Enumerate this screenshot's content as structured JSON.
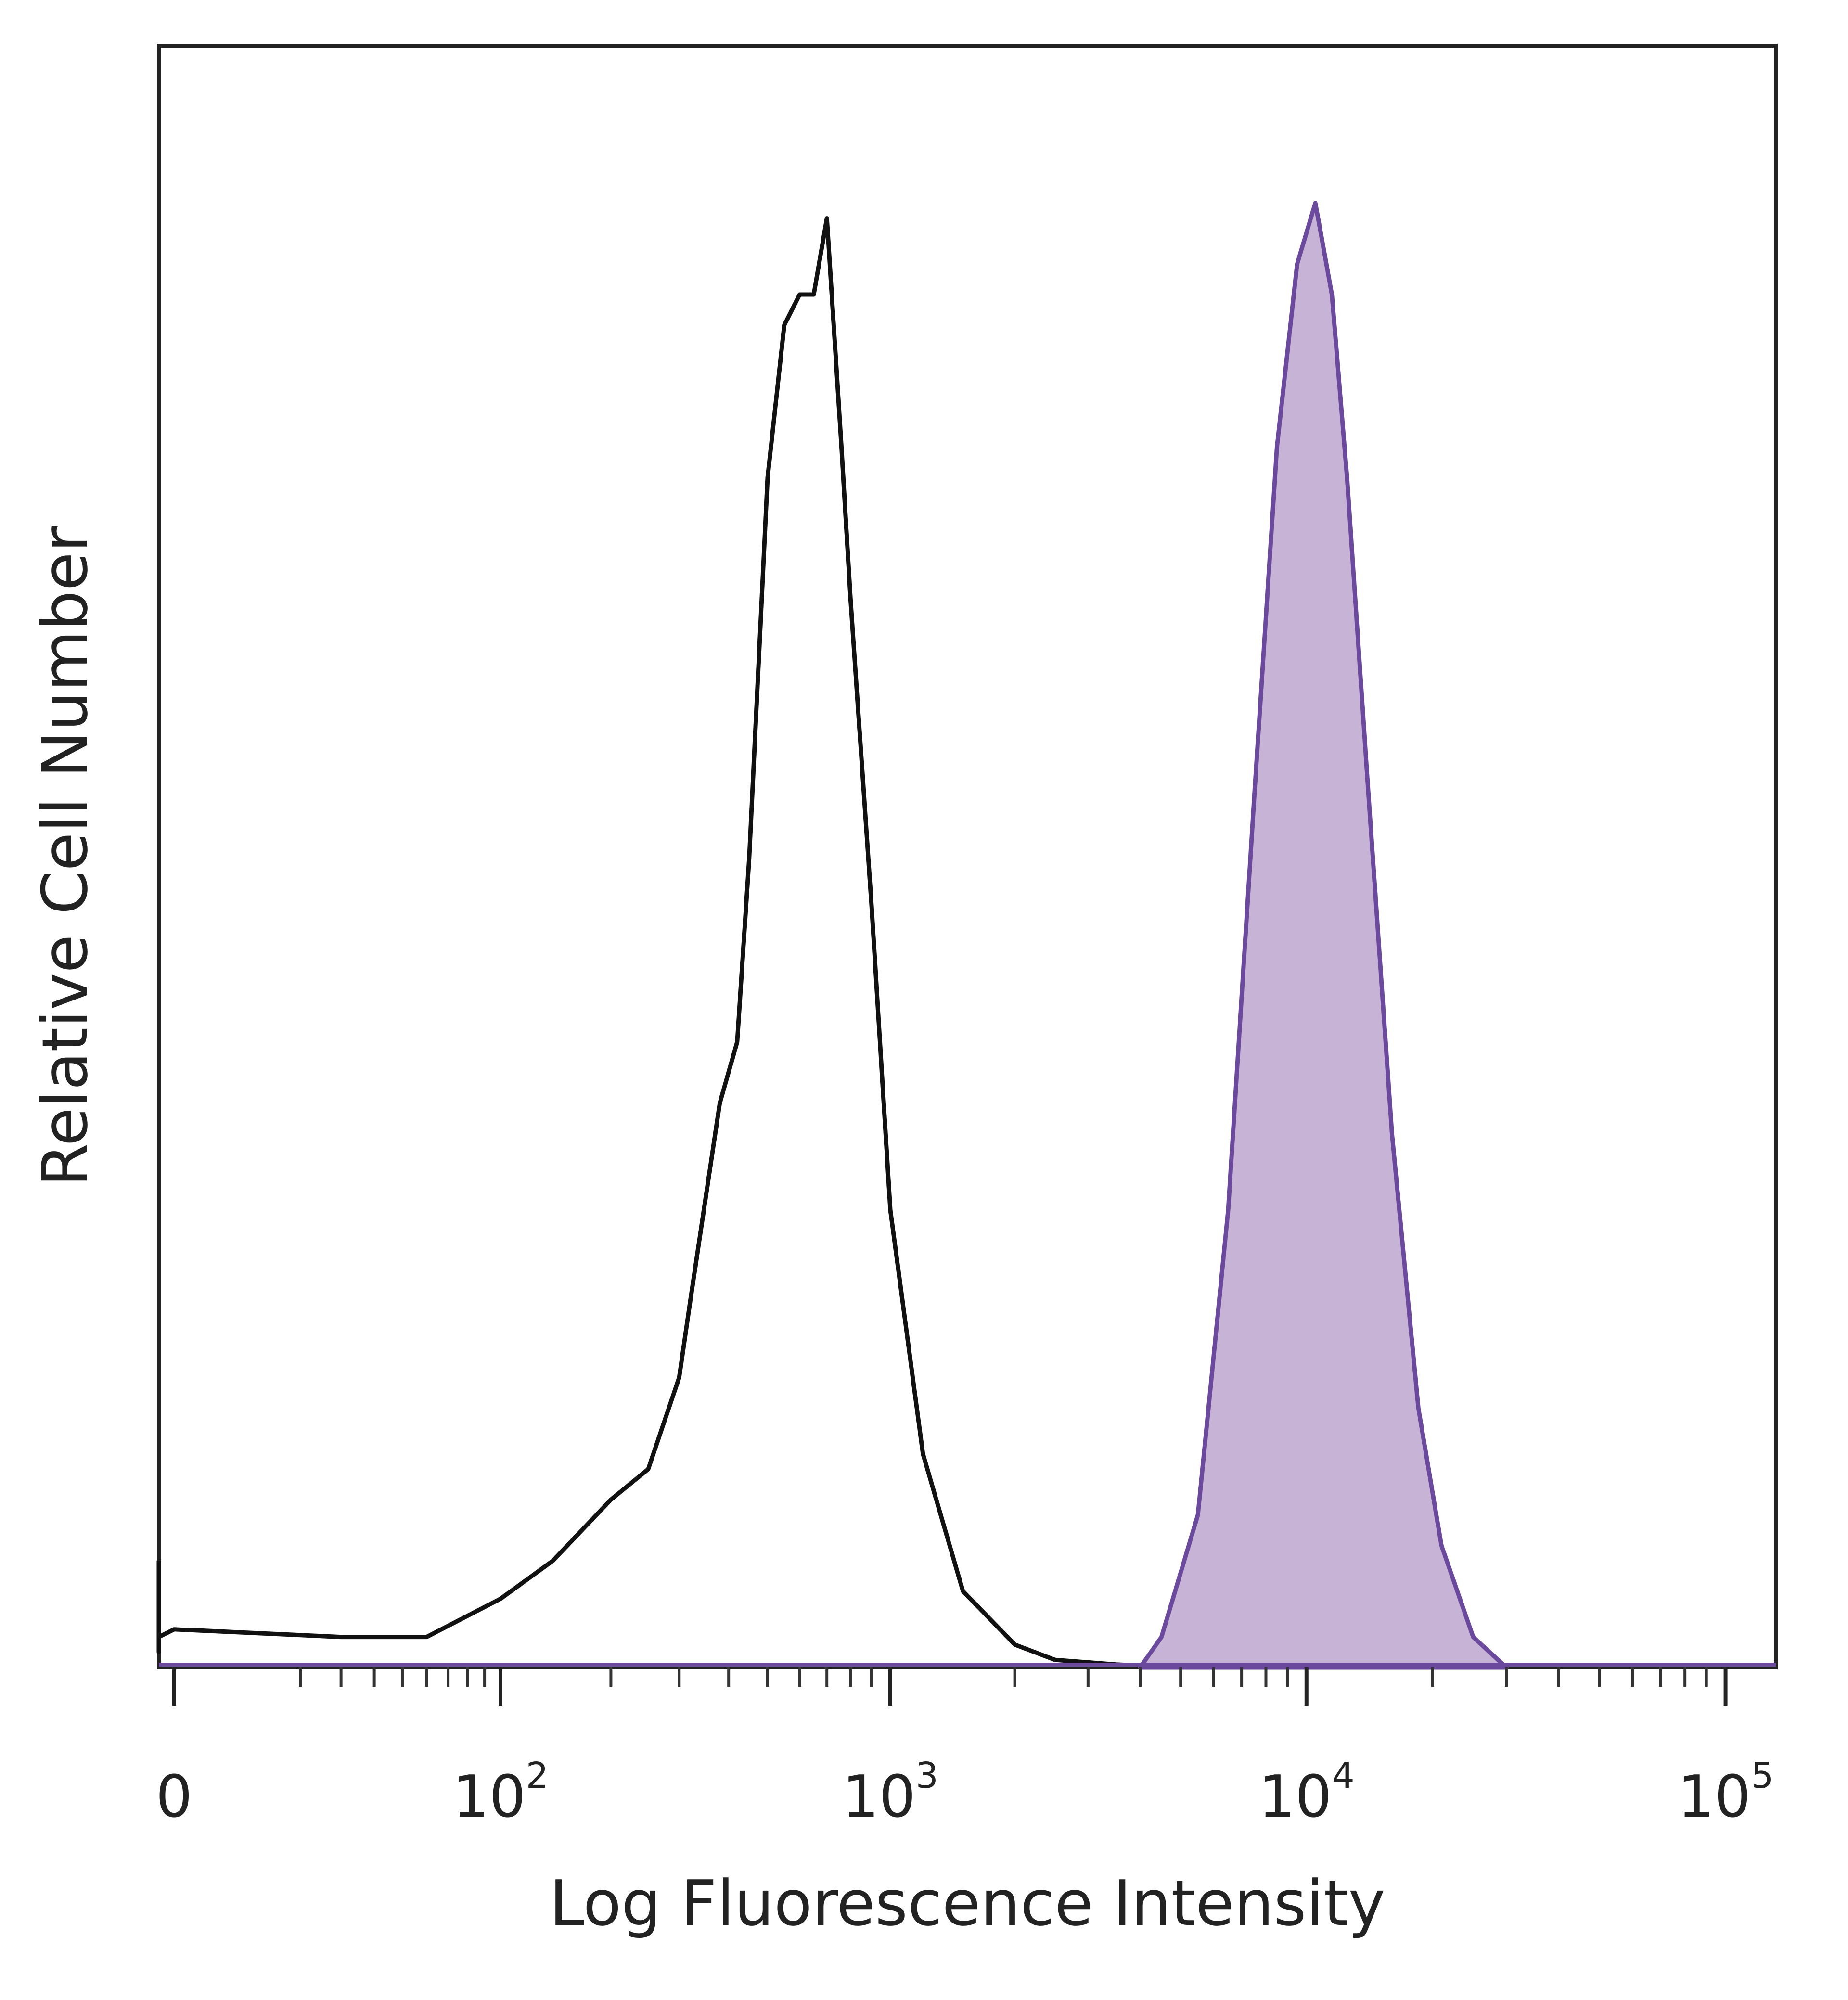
{
  "chart_data": {
    "type": "area",
    "title": "",
    "xlabel": "Log Fluorescence Intensity",
    "ylabel": "Relative Cell Number",
    "x_scale": "biexponential",
    "xlim": [
      -200,
      200000
    ],
    "ylim": [
      0,
      100
    ],
    "grid": false,
    "legend": "none",
    "x_ticks": [
      {
        "value": 0,
        "base": "0",
        "exp": ""
      },
      {
        "value": 100,
        "base": "10",
        "exp": "2"
      },
      {
        "value": 1000,
        "base": "10",
        "exp": "3"
      },
      {
        "value": 10000,
        "base": "10",
        "exp": "4"
      },
      {
        "value": 100000,
        "base": "10",
        "exp": "5"
      }
    ],
    "series": [
      {
        "style": "outline",
        "color": "#111111",
        "x": [
          -200,
          -180,
          -160,
          -120,
          -80,
          -40,
          0,
          30,
          60,
          100,
          140,
          200,
          250,
          300,
          320,
          380,
          420,
          450,
          500,
          550,
          600,
          650,
          700,
          760,
          800,
          900,
          1000,
          1200,
          1500,
          2000,
          2500,
          3500,
          5000
        ],
        "y": [
          7,
          4,
          2,
          1,
          1.5,
          2,
          2.5,
          2,
          2,
          4.5,
          7,
          11,
          13,
          19,
          24,
          37,
          41,
          53,
          78,
          88,
          90,
          90,
          95,
          80,
          70,
          50,
          30,
          14,
          5,
          1.5,
          0.5,
          0.2,
          0
        ]
      },
      {
        "style": "filled",
        "color": "#6b4a9e",
        "fill": "#c6b3d6",
        "x": [
          4000,
          4500,
          5500,
          6500,
          7500,
          8500,
          9500,
          10500,
          11500,
          12500,
          14000,
          16000,
          18500,
          21000,
          25000,
          30000
        ],
        "y": [
          0,
          2,
          10,
          30,
          57,
          80,
          92,
          96,
          90,
          78,
          58,
          35,
          17,
          8,
          2,
          0
        ]
      }
    ]
  }
}
